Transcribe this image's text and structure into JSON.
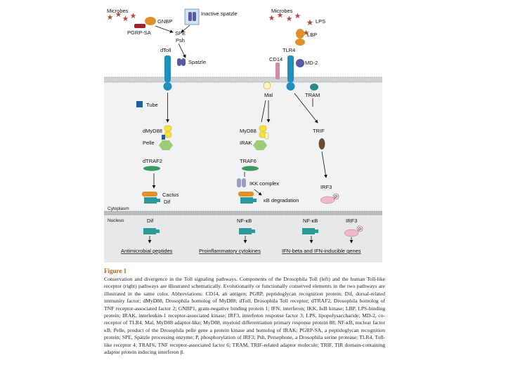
{
  "labels": {
    "microbes_left": "Microbes",
    "gnbp": "GNBP",
    "pgrp": "PGRP-SA",
    "spe": "SPE",
    "psh": "Psh",
    "inactive_spatzle": "Inactive spatzle",
    "dtoll": "dToll",
    "spatzle": "Spatzle",
    "microbes_right": "Microbes",
    "lps": "LPS",
    "lbp": "LBP",
    "tlr4": "TLR4",
    "cd14": "CD14",
    "md2": "MD-2",
    "mal": "Mal",
    "tram": "TRAM",
    "tube": "Tube",
    "dmyd88": "dMyD88",
    "pelle": "Pelle",
    "dtraf2": "dTRAF2",
    "cactus": "Cactus",
    "dif": "Dif",
    "myd88": "MyD88",
    "irak": "IRAK",
    "traf6": "TRAF6",
    "ikk": "IKK complex",
    "kb_deg": "κB degradation",
    "trif": "TRIF",
    "irf3": "IRF3",
    "p": "P",
    "cytoplasm": "Cytoplasm",
    "nucleus": "Nucleus",
    "dif_nuc": "Dif",
    "nfkb_1": "NF-κB",
    "nfkb_2": "NF-κB",
    "irf3_nuc": "IRF3",
    "p_nuc": "P",
    "out_amp": "Antimicrobial peptides",
    "out_cyt": "Proinflammatory cytokines",
    "out_ifn": "IFN-beta and IFN-inducible genes"
  },
  "caption": {
    "title": "Figure 1",
    "body": "Conservation and divergence in the Toll signaling pathways. Components of the Drosophila Toll (left) and the human Toll-like receptor (right) pathways are illustrated schematically. Evolutionarily or functionally conserved elements in the two pathways are illustrated in the same color. Abbreviations: CD14, an antigen; PGRP, peptidoglycan recognition protein; Dif, dorsal-related immunity factor; dMyD88, Drosophila homolog of MyD88; dToll, Drosophila Toll receptor; dTRAF2, Drosophila homolog of TNF receptor-associated factor 2; GNBP1, gram-negative binding protein 1; IFN, interferon; IKK, IκB kinase; LBP, LPS-binding protein; IRAK, interleukin-1 receptor-associated kinase; IRF3, interferon response factor 3; LPS, lipopolysaccharide; MD-2, co-receptor of TLR4; Mal, MyD88 adaptor-like; MyD88, myeloid differentiation primary response protein 88; NF-κB, nuclear factor κB; Pelle, product of the Drosophila pelle gene a protein kinase and homolog of IRAK; PGRP-SA, a peptidoglycan recognition protein; SPE, Spätzle processing enzyme; P, phosphorylation of IRF3; Psh, Persephone, a Drosophila serine protease; TLR4, Toll-like receptor 4; TRAF6, TNF receptor-associated factor 6; TRAM, TRIF-related adaptor molecule; TRIF, TIR domain-containing adaptor protein inducing interferon β."
  },
  "colors": {
    "toll_blue": "#1f8fbf",
    "spatzle_purple": "#5a5aa0",
    "myd88_yellow": "#f5e13a",
    "pelle_green": "#9ccc78",
    "traf_green": "#3a9a62",
    "cactus_orange": "#e0902a",
    "dif_teal": "#2a9a9a",
    "pink": "#f2b8c6",
    "tram_teal": "#2a8a8a",
    "trif_brown": "#6b4a32",
    "membrane_gray": "#cfd3d6",
    "star_red": "#b0473a"
  }
}
